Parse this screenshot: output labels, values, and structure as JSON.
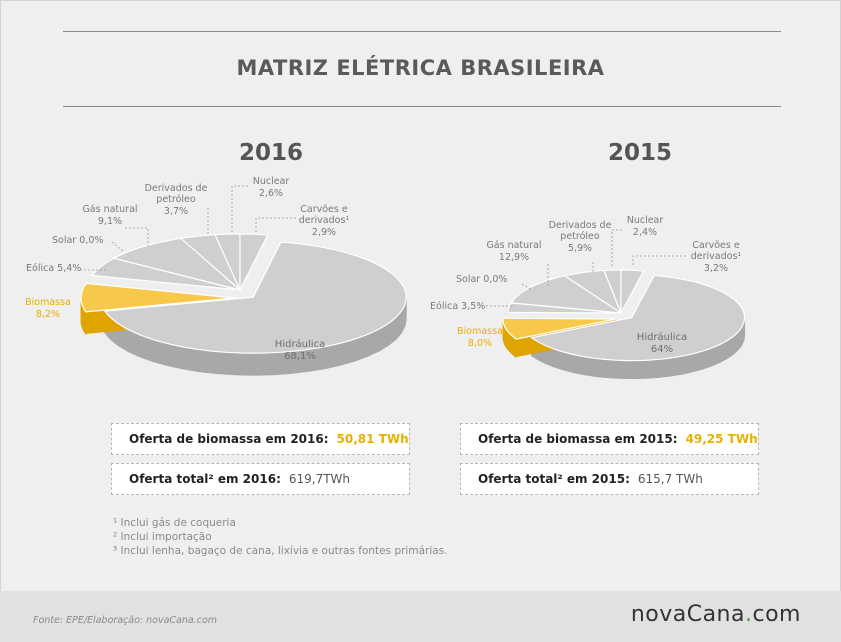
{
  "title": "MATRIZ ELÉTRICA BRASILEIRA",
  "chart_data": [
    {
      "type": "pie",
      "title": "2016",
      "categories": [
        "Hidráulica",
        "Biomassa",
        "Eólica",
        "Solar",
        "Gás natural",
        "Derivados de petróleo",
        "Nuclear",
        "Carvões e derivados¹"
      ],
      "values": [
        68.1,
        8.2,
        5.4,
        0.0,
        9.1,
        3.7,
        2.6,
        2.9
      ],
      "value_labels": [
        "68,1%",
        "8,2%",
        "5,4%",
        "0,0%",
        "9,1%",
        "3,7%",
        "2,6%",
        "2,9%"
      ],
      "highlight": "Biomassa"
    },
    {
      "type": "pie",
      "title": "2015",
      "categories": [
        "Hidráulica",
        "Biomassa",
        "Eólica",
        "Solar",
        "Gás natural",
        "Derivados de petróleo",
        "Nuclear",
        "Carvões e derivados¹"
      ],
      "values": [
        64,
        8.0,
        3.5,
        0.0,
        12.9,
        5.9,
        2.4,
        3.2
      ],
      "value_labels": [
        "64%",
        "8,0%",
        "3,5%",
        "0,0%",
        "12,9%",
        "5,9%",
        "2,4%",
        "3,2%"
      ],
      "highlight": "Biomassa"
    }
  ],
  "boxes": {
    "bio_2016": {
      "label": "Oferta de biomassa em 2016:",
      "value": "50,81 TWh"
    },
    "total_2016": {
      "label": "Oferta total² em 2016:",
      "value": "619,7TWh"
    },
    "bio_2015": {
      "label": "Oferta de biomassa em 2015:",
      "value": "49,25 TWh"
    },
    "total_2015": {
      "label": "Oferta total² em 2015:",
      "value": "615,7 TWh"
    }
  },
  "notes": [
    "¹ Inclui gás de coqueria",
    "² Inclui importação",
    "³ Inclui lenha, bagaço de cana, lixívia e outras fontes primárias."
  ],
  "source": "Fonte: EPE/Elaboração: novaCana.com",
  "logo": {
    "a": "nova",
    "b": "Cana",
    "dot": ".",
    "c": "com"
  },
  "colors": {
    "gray_top": "#cfcfcf",
    "gray_side": "#a8a8a8",
    "gold_top": "#f7c84a",
    "gold_side": "#e0a400",
    "stroke": "#ffffff"
  }
}
